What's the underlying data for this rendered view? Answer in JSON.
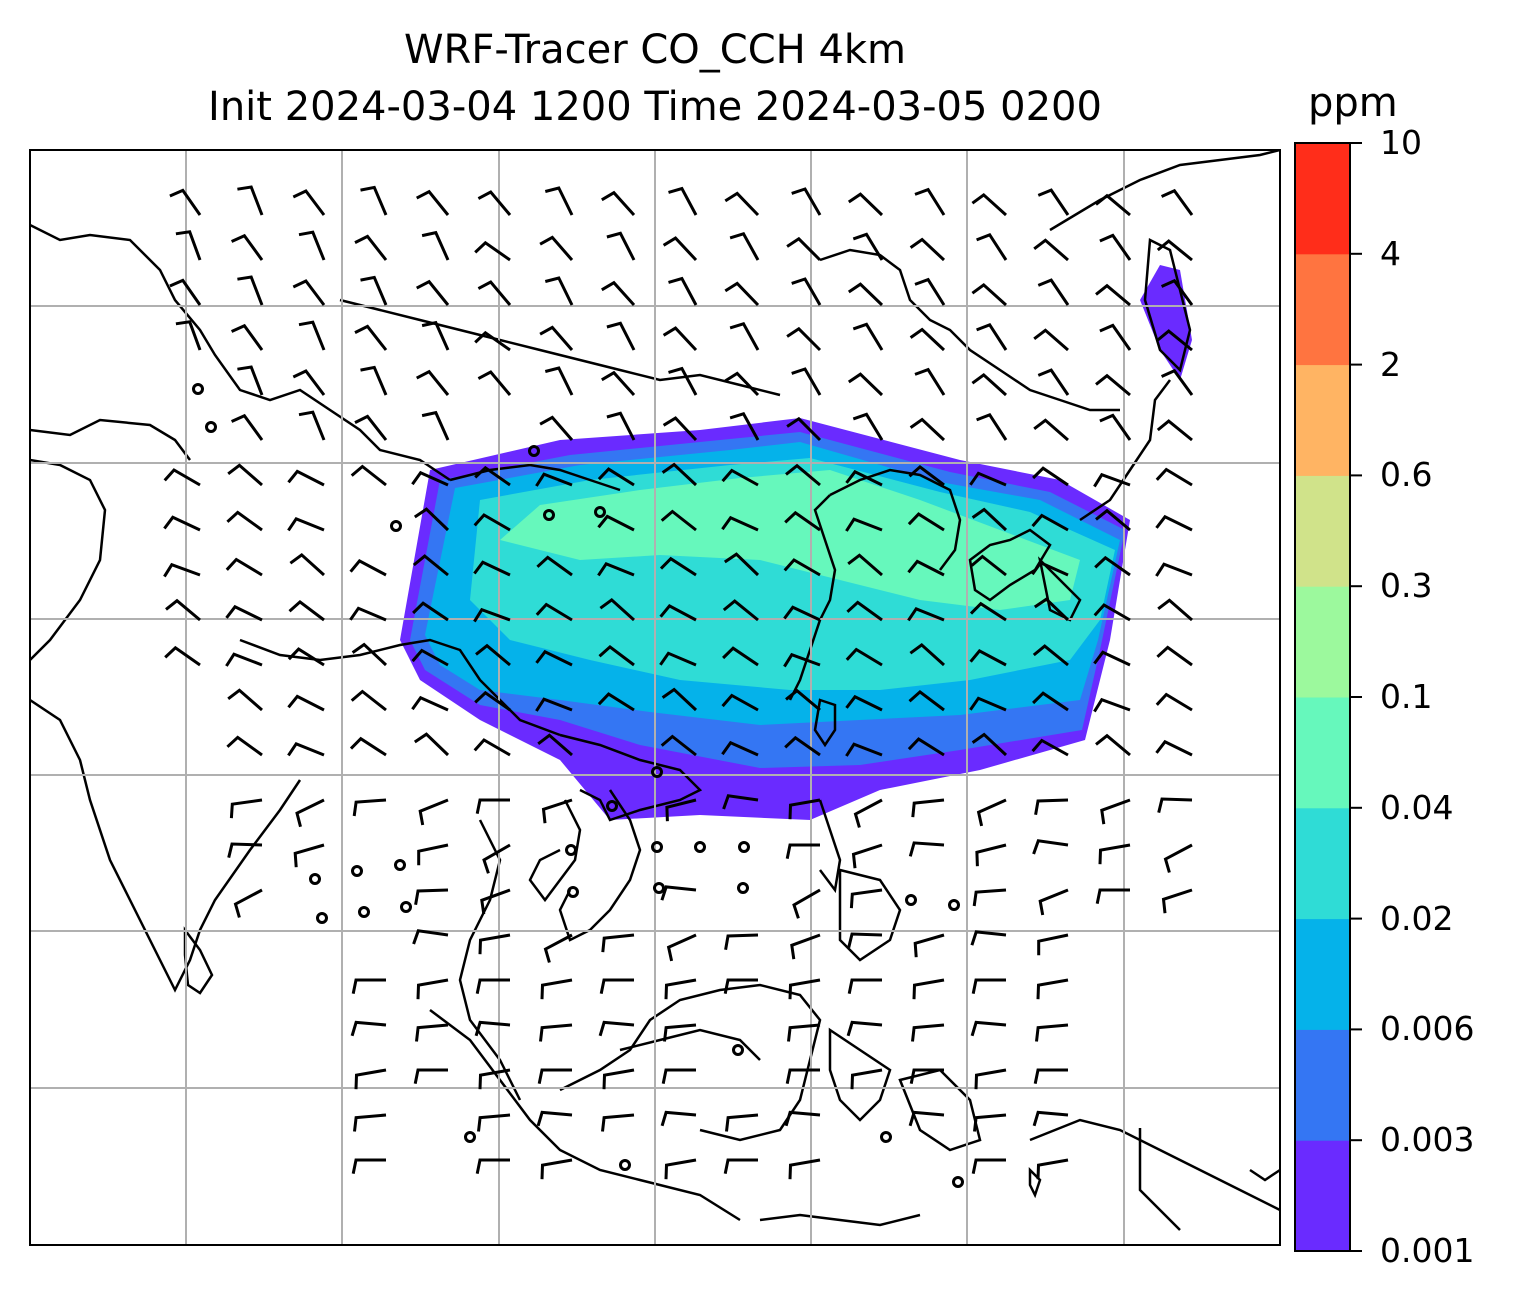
{
  "title": {
    "line1": "WRF-Tracer CO_CCH 4km",
    "line2": "Init 2024-03-04 1200 Time 2024-03-05 0200"
  },
  "colorbar": {
    "unit": "ppm",
    "levels": [
      "0.001",
      "0.003",
      "0.006",
      "0.02",
      "0.04",
      "0.1",
      "0.3",
      "0.6",
      "2",
      "4",
      "10"
    ],
    "colors": [
      "#6a2bff",
      "#3476f3",
      "#05b2ea",
      "#2fdcd6",
      "#66f8bc",
      "#9cf99d",
      "#d0e38a",
      "#ffb463",
      "#ff7440",
      "#ff2d1a"
    ]
  },
  "map": {
    "gridlines": true,
    "features": [
      "coastlines",
      "country-borders",
      "wind-barbs",
      "co-tracer-plume"
    ]
  }
}
